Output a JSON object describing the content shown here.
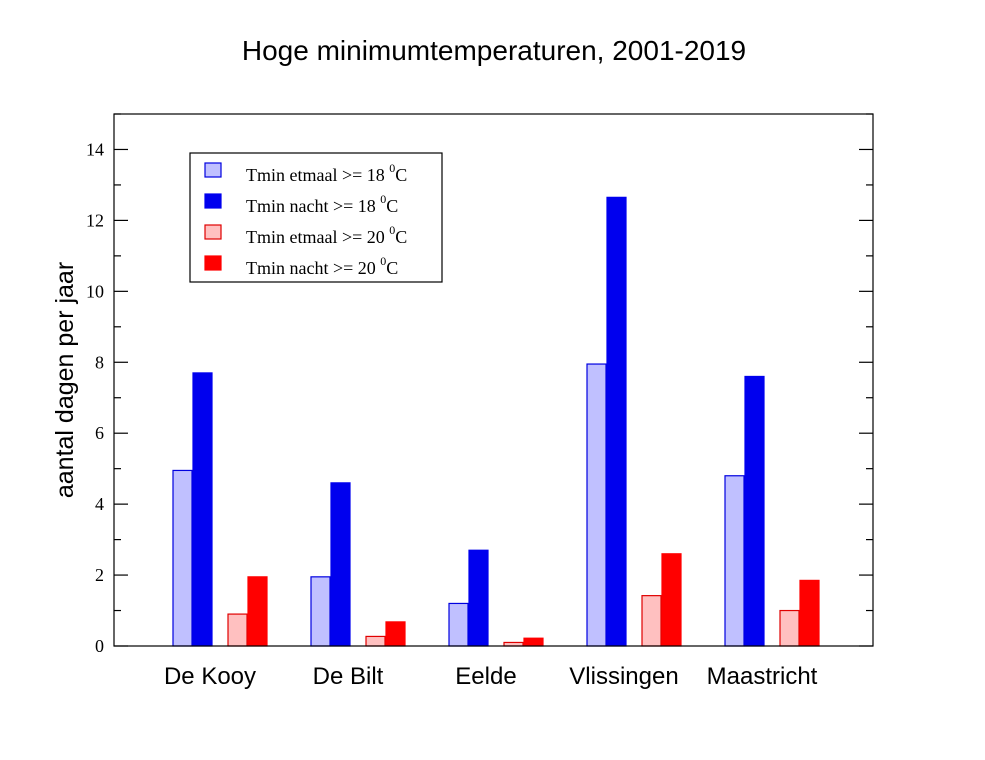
{
  "chart_data": {
    "type": "bar",
    "title": "Hoge minimumtemperaturen, 2001-2019",
    "xlabel": "",
    "ylabel": "aantal dagen per jaar",
    "ylim": [
      0,
      15
    ],
    "yticks": [
      0,
      2,
      4,
      6,
      8,
      10,
      12,
      14
    ],
    "ytick_labels": [
      "0",
      "2",
      "4",
      "6",
      "8",
      "10",
      "12",
      "14"
    ],
    "categories": [
      "De Kooy",
      "De Bilt",
      "Eelde",
      "Vlissingen",
      "Maastricht"
    ],
    "legend_position": "top-left",
    "series": [
      {
        "name": "Tmin etmaal >= 18 0C",
        "label_main": "Tmin etmaal >= 18 ",
        "label_sup": "0",
        "label_unit": "C",
        "fill": "#c0c0ff",
        "stroke": "#0000e0",
        "values": [
          4.95,
          1.95,
          1.2,
          7.95,
          4.8
        ]
      },
      {
        "name": "Tmin nacht >= 18 0C",
        "label_main": "Tmin nacht >= 18 ",
        "label_sup": "0",
        "label_unit": "C",
        "fill": "#0000ee",
        "stroke": "#0000ee",
        "values": [
          7.7,
          4.6,
          2.7,
          12.65,
          7.6
        ]
      },
      {
        "name": "Tmin etmaal >= 20 0C",
        "label_main": "Tmin etmaal >= 20 ",
        "label_sup": "0",
        "label_unit": "C",
        "fill": "#ffc0c0",
        "stroke": "#e00000",
        "values": [
          0.9,
          0.27,
          0.1,
          1.42,
          1.0
        ]
      },
      {
        "name": "Tmin nacht >= 20 0C",
        "label_main": "Tmin nacht >= 20 ",
        "label_sup": "0",
        "label_unit": "C",
        "fill": "#ff0000",
        "stroke": "#ff0000",
        "values": [
          1.95,
          0.68,
          0.22,
          2.6,
          1.85
        ]
      }
    ]
  }
}
